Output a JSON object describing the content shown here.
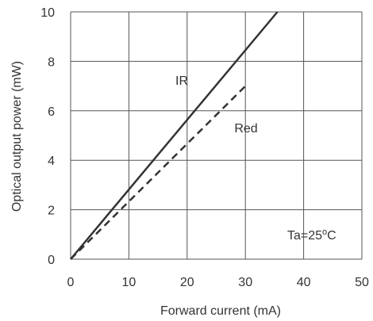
{
  "chart_data": {
    "type": "line",
    "xlabel": "Forward current  (mA)",
    "ylabel": "Optical output power  (mW)",
    "xlim": [
      0,
      50
    ],
    "ylim": [
      0,
      10
    ],
    "x_ticks": [
      "0",
      "10",
      "20",
      "30",
      "40",
      "50"
    ],
    "y_ticks": [
      "0",
      "2",
      "4",
      "6",
      "8",
      "10"
    ],
    "grid": true,
    "series": [
      {
        "name": "IR",
        "line_style": "solid",
        "color": "#333333",
        "x": [
          0,
          35.5
        ],
        "y": [
          0,
          10
        ]
      },
      {
        "name": "Red",
        "line_style": "dashed",
        "color": "#333333",
        "x": [
          0,
          30
        ],
        "y": [
          0,
          7
        ]
      }
    ],
    "annotations": [
      {
        "text": "Ta=25",
        "superscript": "o",
        "suffix": "C"
      }
    ]
  }
}
